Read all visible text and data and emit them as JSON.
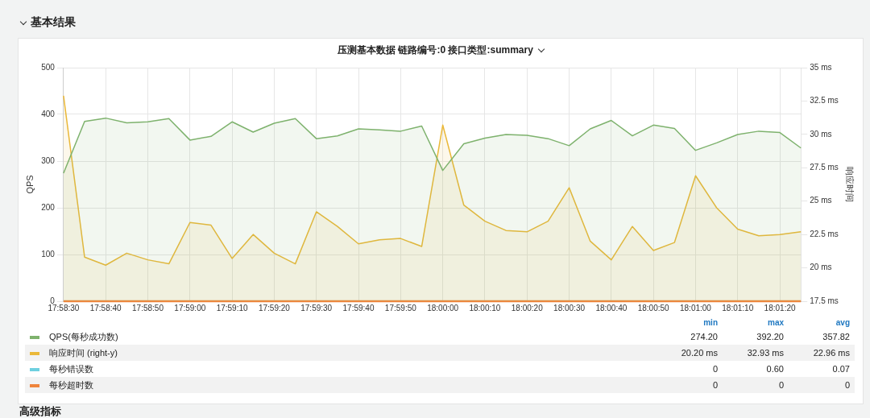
{
  "chart_data": {
    "type": "area",
    "title": "压测基本数据 链路编号:0 接口类型:summary",
    "categories": [
      "17:58:30",
      null,
      "17:58:40",
      null,
      "17:58:50",
      null,
      "17:59:00",
      null,
      "17:59:10",
      null,
      "17:59:20",
      null,
      "17:59:30",
      null,
      "17:59:40",
      null,
      "17:59:50",
      null,
      "18:00:00",
      null,
      "18:00:10",
      null,
      "18:00:20",
      null,
      "18:00:30",
      null,
      "18:00:40",
      null,
      "18:00:50",
      null,
      "18:01:00",
      null,
      "18:01:10",
      null,
      "18:01:20",
      null
    ],
    "series": [
      {
        "name": "QPS(每秒成功数)",
        "color": "#7eb26d",
        "values": [
          274,
          385,
          392,
          382,
          384,
          391,
          345,
          353,
          384,
          362,
          381,
          391,
          348,
          354,
          369,
          367,
          364,
          375,
          280,
          337,
          349,
          357,
          355,
          348,
          333,
          369,
          387,
          354,
          377,
          370,
          323,
          339,
          357,
          364,
          361,
          328
        ]
      },
      {
        "name": "响应时间 (right-y)",
        "color": "#eab839",
        "axis": "y2",
        "values": [
          32.9,
          20.8,
          20.2,
          21.1,
          20.6,
          20.3,
          23.4,
          23.2,
          20.7,
          22.5,
          21.1,
          20.3,
          24.2,
          23.1,
          21.8,
          22.1,
          22.2,
          21.6,
          30.7,
          24.7,
          23.5,
          22.8,
          22.7,
          23.5,
          26.0,
          22.0,
          20.6,
          23.1,
          21.3,
          21.9,
          26.9,
          24.5,
          22.9,
          22.4,
          22.5,
          22.7
        ]
      },
      {
        "name": "每秒错误数",
        "color": "#6ed0e0",
        "values": [
          null,
          null,
          null,
          null,
          null,
          null,
          null,
          null,
          null,
          null,
          null,
          null,
          null,
          null,
          null,
          null,
          null,
          null,
          null,
          null,
          null,
          null,
          null,
          null,
          null,
          null,
          null,
          null,
          null,
          null,
          null,
          null,
          null,
          null,
          null,
          null
        ]
      },
      {
        "name": "每秒超时数",
        "color": "#ef843c",
        "type": "line",
        "values": [
          0,
          0,
          0,
          0,
          0,
          0,
          0,
          0,
          0,
          0,
          0,
          0,
          0,
          0,
          0,
          0,
          0,
          0,
          0,
          0,
          0,
          0,
          0,
          0,
          0,
          0,
          0,
          0,
          0,
          0,
          0,
          0,
          0,
          0,
          0,
          0
        ]
      }
    ],
    "ylabel": "QPS",
    "y2label": "响应时间",
    "ylim": [
      0,
      500
    ],
    "yticks": [
      0,
      100,
      200,
      300,
      400,
      500
    ],
    "y2lim": [
      17.5,
      35
    ],
    "y2ticks": [
      {
        "value": 17.5,
        "label": "17.5 ms"
      },
      {
        "value": 20,
        "label": "20 ms"
      },
      {
        "value": 22.5,
        "label": "22.5 ms"
      },
      {
        "value": 25,
        "label": "25 ms"
      },
      {
        "value": 27.5,
        "label": "27.5 ms"
      },
      {
        "value": 30,
        "label": "30 ms"
      },
      {
        "value": 32.5,
        "label": "32.5 ms"
      },
      {
        "value": 35,
        "label": "35 ms"
      }
    ],
    "grid": true,
    "legend": "bottom",
    "marker": "none",
    "line_style": "solid",
    "annotations": [
      "基本结果",
      "min",
      "max",
      "avg",
      "274.20",
      "392.20",
      "357.82",
      "20.20 ms",
      "32.93 ms",
      "22.96 ms",
      "0",
      "0.60",
      "0.07",
      "0",
      "0",
      "0",
      "高级指标"
    ]
  }
}
